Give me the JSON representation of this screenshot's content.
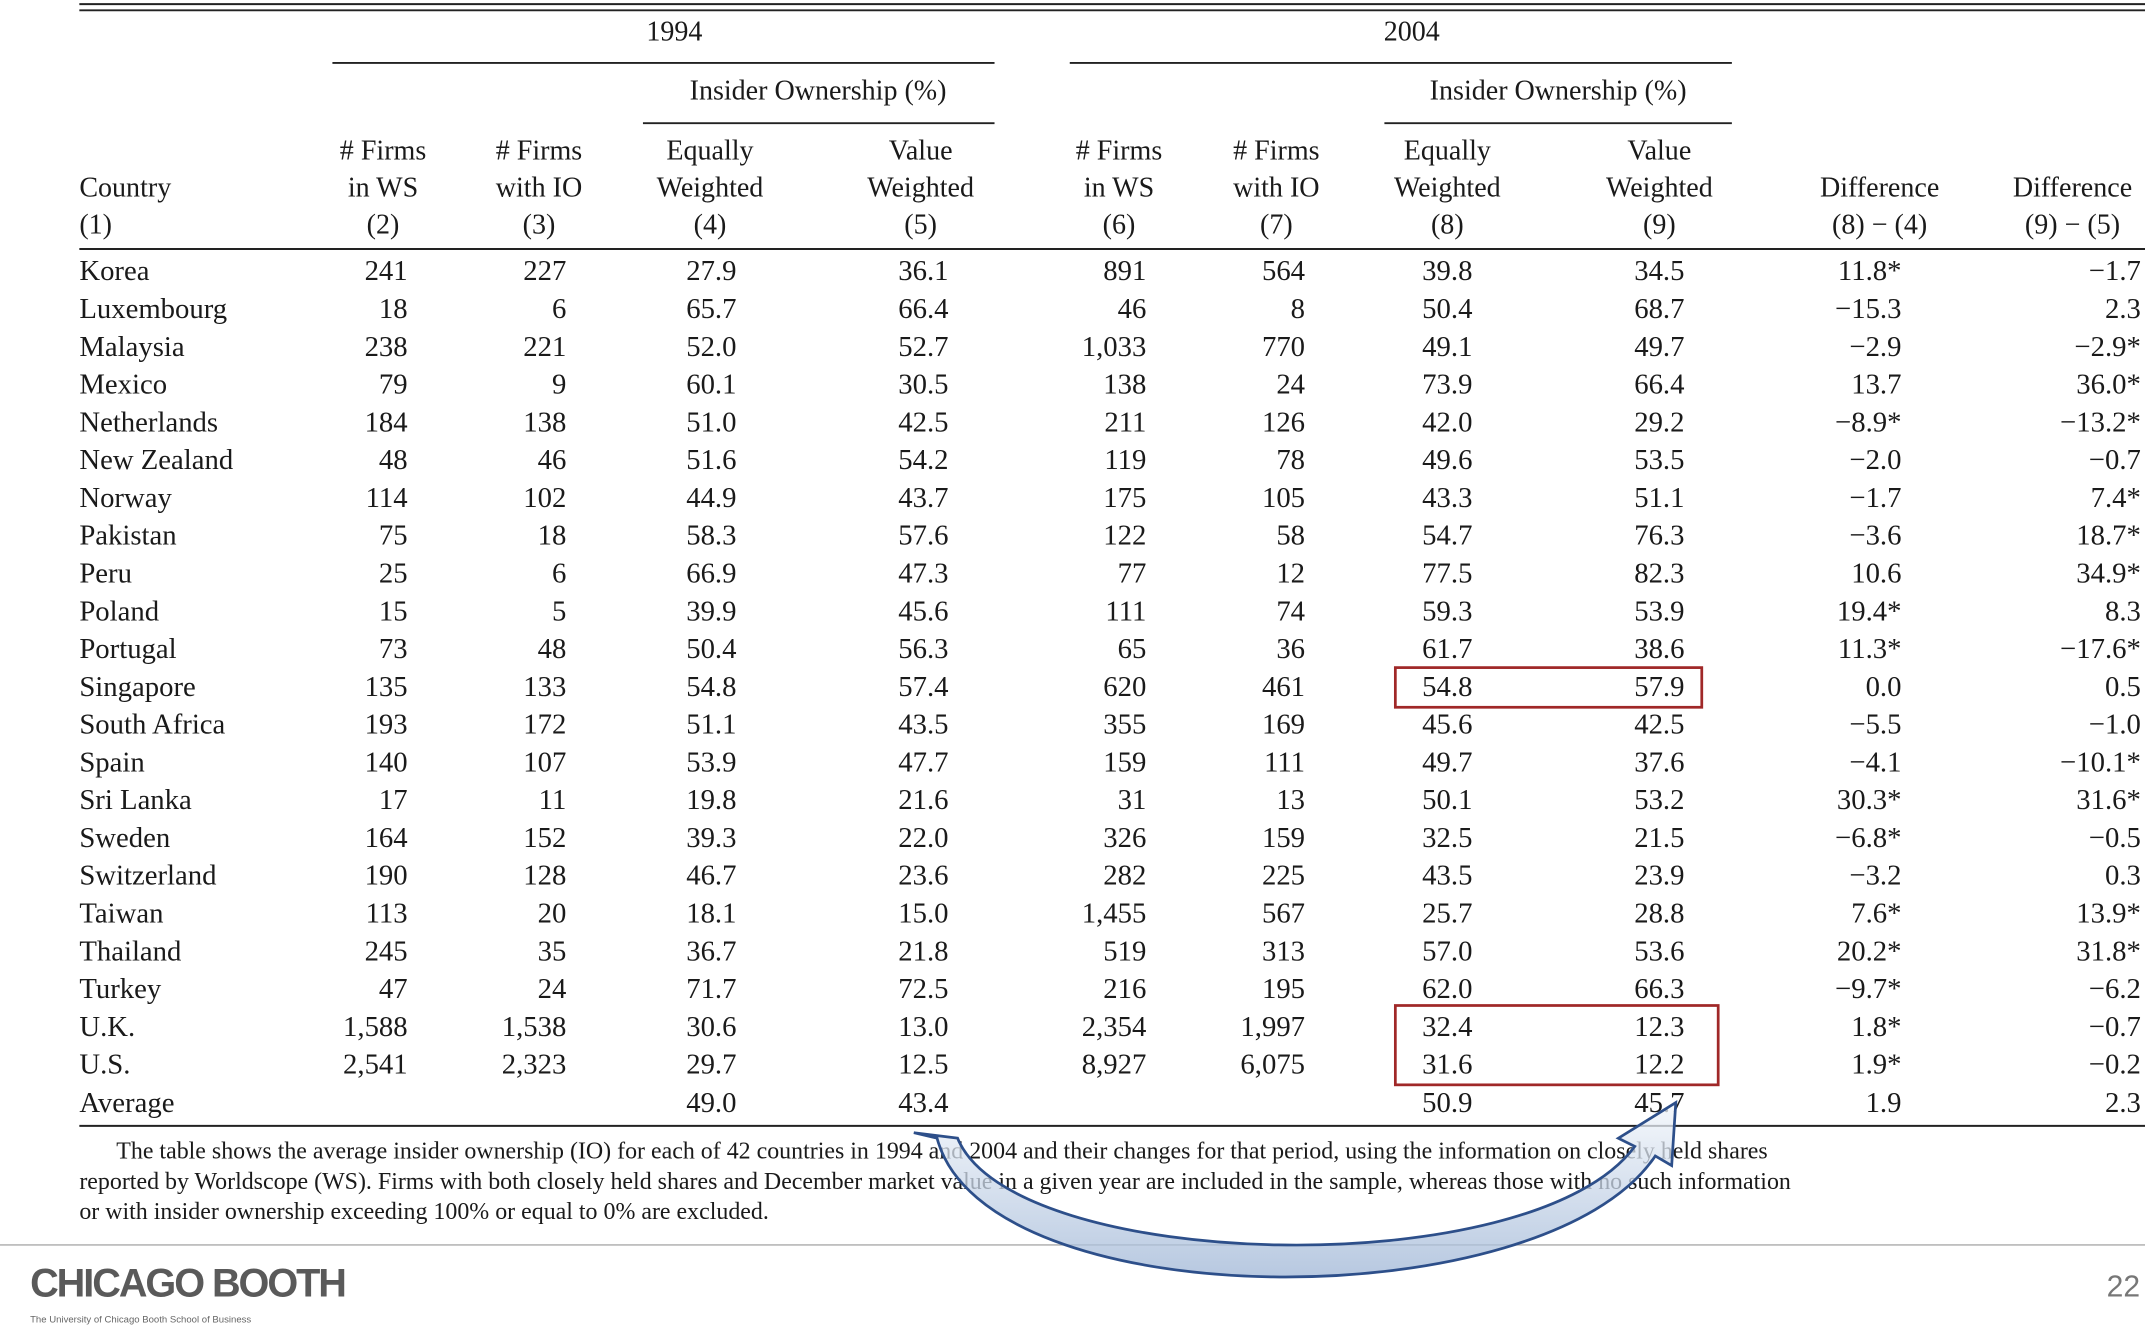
{
  "table": {
    "groups": [
      "1994",
      "2004"
    ],
    "subgroups": [
      "Insider Ownership (%)",
      "Insider Ownership (%)"
    ],
    "columns": [
      [
        "Country",
        "(1)"
      ],
      [
        "# Firms",
        "in WS",
        "(2)"
      ],
      [
        "# Firms",
        "with IO",
        "(3)"
      ],
      [
        "Equally",
        "Weighted",
        "(4)"
      ],
      [
        "Value",
        "Weighted",
        "(5)"
      ],
      [
        "# Firms",
        "in WS",
        "(6)"
      ],
      [
        "# Firms",
        "with IO",
        "(7)"
      ],
      [
        "Equally",
        "Weighted",
        "(8)"
      ],
      [
        "Value",
        "Weighted",
        "(9)"
      ],
      [
        "Difference",
        "(8) − (4)"
      ],
      [
        "Difference",
        "(9) − (5)"
      ]
    ],
    "rows": [
      [
        "Korea",
        "241",
        "227",
        "27.9",
        "36.1",
        "891",
        "564",
        "39.8",
        "34.5",
        "11.8*",
        "−1.7"
      ],
      [
        "Luxembourg",
        "18",
        "6",
        "65.7",
        "66.4",
        "46",
        "8",
        "50.4",
        "68.7",
        "−15.3",
        "2.3"
      ],
      [
        "Malaysia",
        "238",
        "221",
        "52.0",
        "52.7",
        "1,033",
        "770",
        "49.1",
        "49.7",
        "−2.9",
        "−2.9*"
      ],
      [
        "Mexico",
        "79",
        "9",
        "60.1",
        "30.5",
        "138",
        "24",
        "73.9",
        "66.4",
        "13.7",
        "36.0*"
      ],
      [
        "Netherlands",
        "184",
        "138",
        "51.0",
        "42.5",
        "211",
        "126",
        "42.0",
        "29.2",
        "−8.9*",
        "−13.2*"
      ],
      [
        "New Zealand",
        "48",
        "46",
        "51.6",
        "54.2",
        "119",
        "78",
        "49.6",
        "53.5",
        "−2.0",
        "−0.7"
      ],
      [
        "Norway",
        "114",
        "102",
        "44.9",
        "43.7",
        "175",
        "105",
        "43.3",
        "51.1",
        "−1.7",
        "7.4*"
      ],
      [
        "Pakistan",
        "75",
        "18",
        "58.3",
        "57.6",
        "122",
        "58",
        "54.7",
        "76.3",
        "−3.6",
        "18.7*"
      ],
      [
        "Peru",
        "25",
        "6",
        "66.9",
        "47.3",
        "77",
        "12",
        "77.5",
        "82.3",
        "10.6",
        "34.9*"
      ],
      [
        "Poland",
        "15",
        "5",
        "39.9",
        "45.6",
        "111",
        "74",
        "59.3",
        "53.9",
        "19.4*",
        "8.3"
      ],
      [
        "Portugal",
        "73",
        "48",
        "50.4",
        "56.3",
        "65",
        "36",
        "61.7",
        "38.6",
        "11.3*",
        "−17.6*"
      ],
      [
        "Singapore",
        "135",
        "133",
        "54.8",
        "57.4",
        "620",
        "461",
        "54.8",
        "57.9",
        "0.0",
        "0.5"
      ],
      [
        "South Africa",
        "193",
        "172",
        "51.1",
        "43.5",
        "355",
        "169",
        "45.6",
        "42.5",
        "−5.5",
        "−1.0"
      ],
      [
        "Spain",
        "140",
        "107",
        "53.9",
        "47.7",
        "159",
        "111",
        "49.7",
        "37.6",
        "−4.1",
        "−10.1*"
      ],
      [
        "Sri Lanka",
        "17",
        "11",
        "19.8",
        "21.6",
        "31",
        "13",
        "50.1",
        "53.2",
        "30.3*",
        "31.6*"
      ],
      [
        "Sweden",
        "164",
        "152",
        "39.3",
        "22.0",
        "326",
        "159",
        "32.5",
        "21.5",
        "−6.8*",
        "−0.5"
      ],
      [
        "Switzerland",
        "190",
        "128",
        "46.7",
        "23.6",
        "282",
        "225",
        "43.5",
        "23.9",
        "−3.2",
        "0.3"
      ],
      [
        "Taiwan",
        "113",
        "20",
        "18.1",
        "15.0",
        "1,455",
        "567",
        "25.7",
        "28.8",
        "7.6*",
        "13.9*"
      ],
      [
        "Thailand",
        "245",
        "35",
        "36.7",
        "21.8",
        "519",
        "313",
        "57.0",
        "53.6",
        "20.2*",
        "31.8*"
      ],
      [
        "Turkey",
        "47",
        "24",
        "71.7",
        "72.5",
        "216",
        "195",
        "62.0",
        "66.3",
        "−9.7*",
        "−6.2"
      ],
      [
        "U.K.",
        "1,588",
        "1,538",
        "30.6",
        "13.0",
        "2,354",
        "1,997",
        "32.4",
        "12.3",
        "1.8*",
        "−0.7"
      ],
      [
        "U.S.",
        "2,541",
        "2,323",
        "29.7",
        "12.5",
        "8,927",
        "6,075",
        "31.6",
        "12.2",
        "1.9*",
        "−0.2"
      ],
      [
        "Average",
        null,
        null,
        "49.0",
        "43.4",
        null,
        null,
        "50.9",
        "45.7",
        "1.9",
        "2.3"
      ]
    ],
    "note": [
      "The table shows the average insider ownership (IO) for each of 42 countries in 1994 and 2004 and their changes for that period, using the information on closely held shares",
      "reported by Worldscope (WS). Firms with both closely held shares and December market value in a given year are included in the sample, whereas those with no such information",
      "or with insider ownership exceeding 100% or equal to 0% are excluded."
    ]
  },
  "footer": {
    "logo": "CHICAGO BOOTH",
    "school": "The University of Chicago Booth School of Business",
    "page_number": "22"
  }
}
